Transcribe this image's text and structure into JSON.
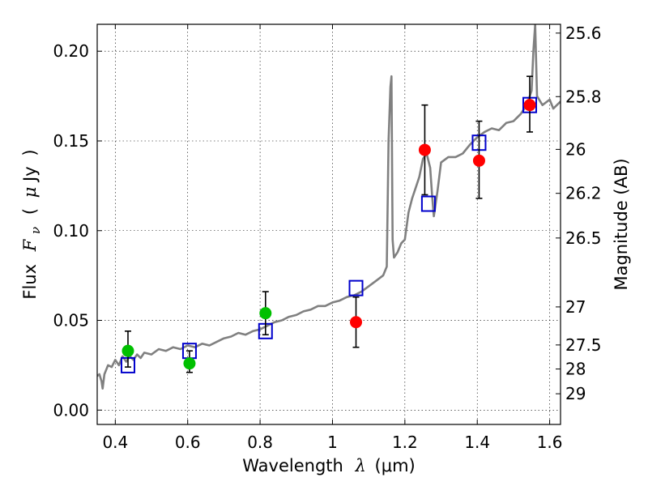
{
  "chart_data": {
    "type": "scatter",
    "xlabel": "Wavelength  λ (μm)",
    "xlabel_parts": {
      "word": "Wavelength",
      "symbol": "λ",
      "unit": "(μm)"
    },
    "ylabel": "Flux  Fν  ( μJy )",
    "ylabel_parts": {
      "word": "Flux",
      "symbol": "F",
      "subscript": "ν",
      "open": "(",
      "unit_mu": "μ",
      "unit": "Jy",
      "close": ")"
    },
    "right_ylabel": "Magnitude (AB)",
    "xlim": [
      0.35,
      1.63
    ],
    "ylim": [
      -0.008,
      0.215
    ],
    "grid": true,
    "x_ticks": [
      {
        "value": 0.4,
        "label": "0.4"
      },
      {
        "value": 0.6,
        "label": "0.6"
      },
      {
        "value": 0.8,
        "label": "0.8"
      },
      {
        "value": 1.0,
        "label": "1"
      },
      {
        "value": 1.2,
        "label": "1.2"
      },
      {
        "value": 1.4,
        "label": "1.4"
      },
      {
        "value": 1.6,
        "label": "1.6"
      }
    ],
    "y_ticks": [
      {
        "value": 0.0,
        "label": "0.00"
      },
      {
        "value": 0.05,
        "label": "0.05"
      },
      {
        "value": 0.1,
        "label": "0.10"
      },
      {
        "value": 0.15,
        "label": "0.15"
      },
      {
        "value": 0.2,
        "label": "0.20"
      }
    ],
    "right_ticks": [
      {
        "flux": 0.2101,
        "label": "25.6"
      },
      {
        "flux": 0.1747,
        "label": "25.8"
      },
      {
        "flux": 0.1453,
        "label": "26"
      },
      {
        "flux": 0.1208,
        "label": "26.2"
      },
      {
        "flux": 0.0959,
        "label": "26.5"
      },
      {
        "flux": 0.0575,
        "label": "27"
      },
      {
        "flux": 0.0363,
        "label": "27.5"
      },
      {
        "flux": 0.0229,
        "label": "28"
      },
      {
        "flux": 0.0091,
        "label": "29"
      }
    ],
    "colors": {
      "model": "#808080",
      "model_points": "#0000cc",
      "green_points": "#00c000",
      "red_points": "#ff0000",
      "error_bars": "#000000"
    },
    "series": [
      {
        "name": "model-spectrum",
        "style": "line",
        "points": [
          [
            0.35,
            0.019
          ],
          [
            0.356,
            0.02
          ],
          [
            0.362,
            0.016
          ],
          [
            0.365,
            0.012
          ],
          [
            0.37,
            0.02
          ],
          [
            0.38,
            0.025
          ],
          [
            0.39,
            0.024
          ],
          [
            0.4,
            0.028
          ],
          [
            0.41,
            0.025
          ],
          [
            0.42,
            0.03
          ],
          [
            0.43,
            0.027
          ],
          [
            0.44,
            0.03
          ],
          [
            0.45,
            0.028
          ],
          [
            0.46,
            0.031
          ],
          [
            0.47,
            0.029
          ],
          [
            0.48,
            0.032
          ],
          [
            0.5,
            0.031
          ],
          [
            0.52,
            0.034
          ],
          [
            0.54,
            0.033
          ],
          [
            0.56,
            0.035
          ],
          [
            0.58,
            0.034
          ],
          [
            0.6,
            0.036
          ],
          [
            0.62,
            0.035
          ],
          [
            0.64,
            0.037
          ],
          [
            0.66,
            0.036
          ],
          [
            0.68,
            0.038
          ],
          [
            0.7,
            0.04
          ],
          [
            0.72,
            0.041
          ],
          [
            0.74,
            0.043
          ],
          [
            0.76,
            0.042
          ],
          [
            0.78,
            0.044
          ],
          [
            0.8,
            0.045
          ],
          [
            0.82,
            0.047
          ],
          [
            0.84,
            0.049
          ],
          [
            0.86,
            0.05
          ],
          [
            0.88,
            0.052
          ],
          [
            0.9,
            0.053
          ],
          [
            0.92,
            0.055
          ],
          [
            0.94,
            0.056
          ],
          [
            0.96,
            0.058
          ],
          [
            0.98,
            0.058
          ],
          [
            1.0,
            0.06
          ],
          [
            1.02,
            0.061
          ],
          [
            1.04,
            0.063
          ],
          [
            1.06,
            0.064
          ],
          [
            1.08,
            0.066
          ],
          [
            1.1,
            0.069
          ],
          [
            1.12,
            0.072
          ],
          [
            1.14,
            0.075
          ],
          [
            1.15,
            0.08
          ],
          [
            1.155,
            0.15
          ],
          [
            1.16,
            0.18
          ],
          [
            1.163,
            0.186
          ],
          [
            1.166,
            0.095
          ],
          [
            1.17,
            0.085
          ],
          [
            1.18,
            0.088
          ],
          [
            1.19,
            0.093
          ],
          [
            1.2,
            0.095
          ],
          [
            1.21,
            0.11
          ],
          [
            1.22,
            0.118
          ],
          [
            1.23,
            0.124
          ],
          [
            1.24,
            0.13
          ],
          [
            1.25,
            0.14
          ],
          [
            1.26,
            0.143
          ],
          [
            1.27,
            0.135
          ],
          [
            1.275,
            0.12
          ],
          [
            1.28,
            0.108
          ],
          [
            1.29,
            0.122
          ],
          [
            1.3,
            0.138
          ],
          [
            1.32,
            0.141
          ],
          [
            1.34,
            0.141
          ],
          [
            1.36,
            0.143
          ],
          [
            1.38,
            0.148
          ],
          [
            1.4,
            0.152
          ],
          [
            1.42,
            0.155
          ],
          [
            1.44,
            0.157
          ],
          [
            1.46,
            0.156
          ],
          [
            1.48,
            0.16
          ],
          [
            1.5,
            0.161
          ],
          [
            1.52,
            0.165
          ],
          [
            1.53,
            0.168
          ],
          [
            1.54,
            0.172
          ],
          [
            1.55,
            0.178
          ],
          [
            1.555,
            0.2
          ],
          [
            1.56,
            0.215
          ],
          [
            1.565,
            0.175
          ],
          [
            1.58,
            0.17
          ],
          [
            1.6,
            0.173
          ],
          [
            1.61,
            0.168
          ],
          [
            1.63,
            0.172
          ]
        ]
      },
      {
        "name": "model-photometry",
        "style": "open-square",
        "points": [
          [
            0.435,
            0.025
          ],
          [
            0.605,
            0.033
          ],
          [
            0.815,
            0.044
          ],
          [
            1.065,
            0.068
          ],
          [
            1.265,
            0.115
          ],
          [
            1.405,
            0.149
          ],
          [
            1.545,
            0.17
          ]
        ]
      },
      {
        "name": "observed-green",
        "style": "filled-circle",
        "points": [
          {
            "x": 0.435,
            "y": 0.033,
            "err_low": 0.024,
            "err_high": 0.044
          },
          {
            "x": 0.605,
            "y": 0.026,
            "err_low": 0.021,
            "err_high": 0.033
          },
          {
            "x": 0.815,
            "y": 0.054,
            "err_low": 0.042,
            "err_high": 0.066
          }
        ]
      },
      {
        "name": "observed-red",
        "style": "filled-circle",
        "points": [
          {
            "x": 1.065,
            "y": 0.049,
            "err_low": 0.035,
            "err_high": 0.063
          },
          {
            "x": 1.255,
            "y": 0.145,
            "err_low": 0.12,
            "err_high": 0.17
          },
          {
            "x": 1.405,
            "y": 0.139,
            "err_low": 0.118,
            "err_high": 0.161
          },
          {
            "x": 1.545,
            "y": 0.17,
            "err_low": 0.155,
            "err_high": 0.186
          }
        ]
      }
    ]
  }
}
